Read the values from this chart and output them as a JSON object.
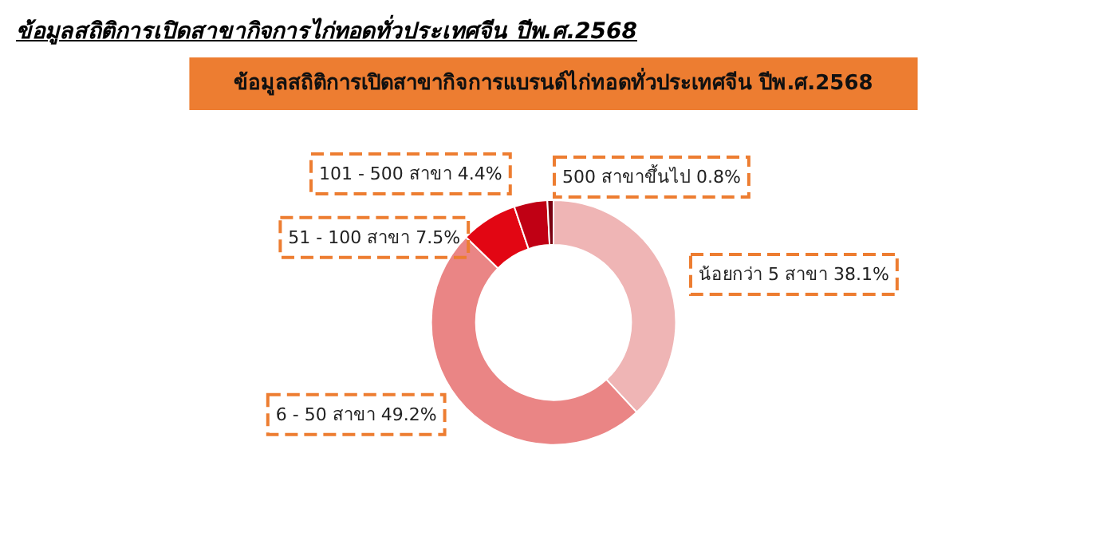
{
  "chart_data": {
    "type": "donut",
    "title": "ข้อมูลสถิติการเปิดสาขากิจการไก่ทอดทั่วประเทศจีน ปีพ.ศ.2568",
    "subtitle": "ข้อมูลสถิติการเปิดสาขากิจการแบรนด์ไก่ทอดทั่วประเทศจีน ปีพ.ศ.2568",
    "categories": [
      "น้อยกว่า 5 สาขา",
      "6 - 50 สาขา",
      "51 - 100 สาขา",
      "101 - 500 สาขา",
      "500 สาขาขึ้นไป"
    ],
    "values": [
      38.1,
      49.2,
      7.5,
      4.4,
      0.8
    ],
    "colors": [
      "#efb5b5",
      "#ea8585",
      "#e20613",
      "#c00014",
      "#7a0010"
    ],
    "value_labels": [
      "38.1%",
      "49.2%",
      "7.5%",
      "4.4%",
      "0.8%"
    ],
    "data_labels": false,
    "legend": false
  }
}
